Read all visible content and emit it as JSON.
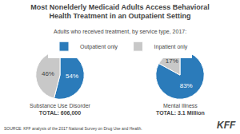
{
  "title": "Most Nonelderly Medicaid Adults Access Behavioral\nHealth Treatment in an Outpatient Setting",
  "subtitle": "Adults who received treatment, by service type, 2017:",
  "legend": "top",
  "annotations": [
    {
      "text": "SOURCE: KFF analysis of the 2017 National Survey on Drug Use and Health."
    },
    {
      "text": "KFF"
    }
  ],
  "chart_data": [
    {
      "type": "pie",
      "title": "Substance Use Disorder",
      "subtitle": "TOTAL: 606,000",
      "categories": [
        "Outpatient only",
        "Inpatient only"
      ],
      "values": [
        54,
        46
      ],
      "value_labels": [
        "54%",
        "46%"
      ],
      "colors": [
        "#2b7bba",
        "#c8c8c8"
      ],
      "data_labels": true
    },
    {
      "type": "pie",
      "title": "Mental Illness",
      "subtitle": "TOTAL: 3.1 Million",
      "categories": [
        "Outpatient only",
        "Inpatient only"
      ],
      "values": [
        83,
        17
      ],
      "value_labels": [
        "83%",
        "17%"
      ],
      "colors": [
        "#2b7bba",
        "#c8c8c8"
      ],
      "data_labels": true
    }
  ]
}
